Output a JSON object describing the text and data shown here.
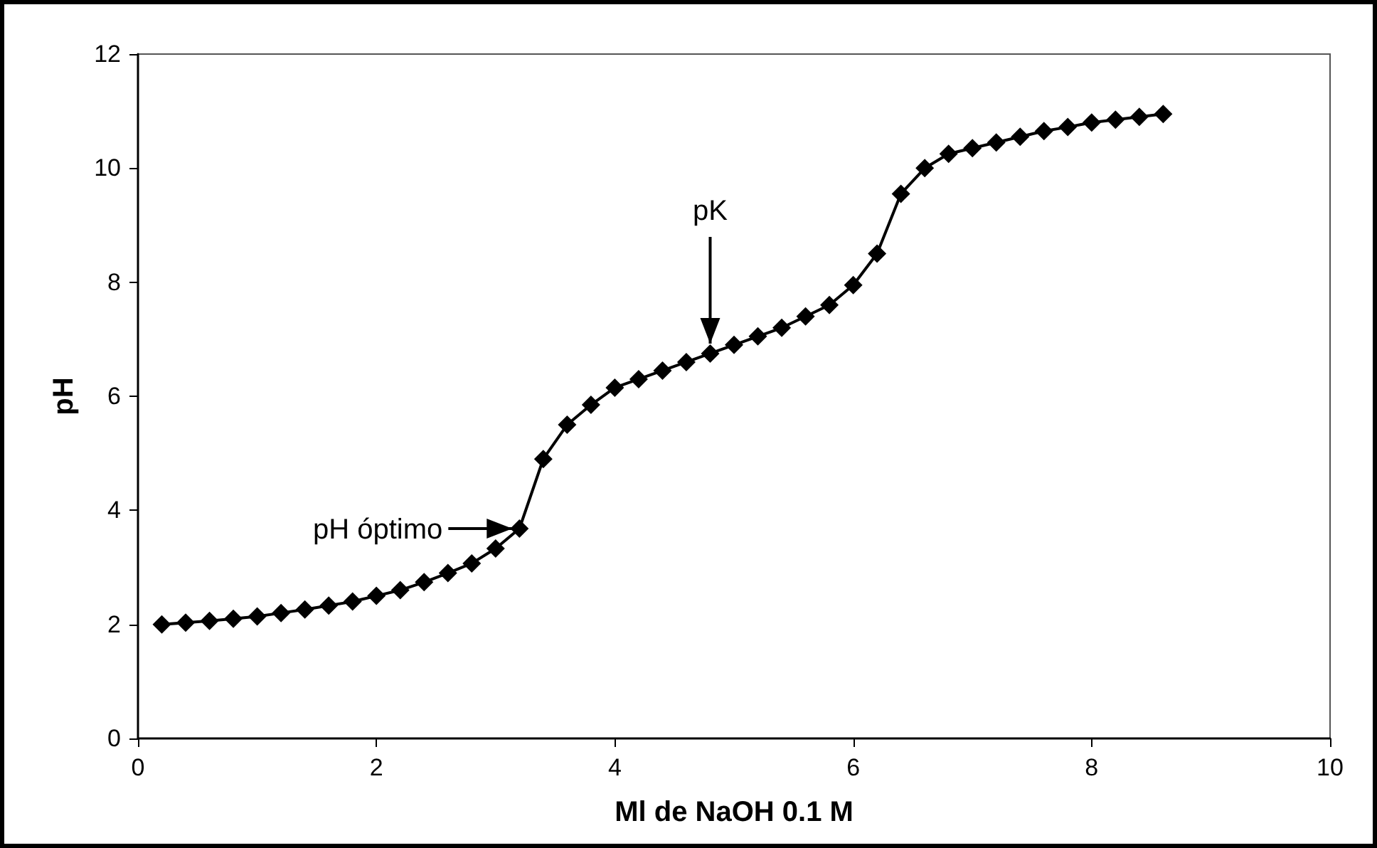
{
  "chart_data": {
    "type": "line",
    "xlabel": "Ml de NaOH 0.1 M",
    "ylabel": "pH",
    "x": [
      0.2,
      0.4,
      0.6,
      0.8,
      1.0,
      1.2,
      1.4,
      1.6,
      1.8,
      2.0,
      2.2,
      2.4,
      2.6,
      2.8,
      3.0,
      3.2,
      3.4,
      3.6,
      3.8,
      4.0,
      4.2,
      4.4,
      4.6,
      4.8,
      5.0,
      5.2,
      5.4,
      5.6,
      5.8,
      6.0,
      6.2,
      6.4,
      6.6,
      6.8,
      7.0,
      7.2,
      7.4,
      7.6,
      7.8,
      8.0,
      8.2,
      8.4,
      8.6
    ],
    "series": [
      {
        "color": "#000000",
        "values": [
          2.0,
          2.03,
          2.06,
          2.1,
          2.14,
          2.2,
          2.26,
          2.33,
          2.4,
          2.5,
          2.6,
          2.74,
          2.9,
          3.07,
          3.33,
          3.68,
          4.9,
          5.5,
          5.85,
          6.15,
          6.3,
          6.45,
          6.6,
          6.75,
          6.9,
          7.05,
          7.2,
          7.4,
          7.6,
          7.95,
          8.5,
          9.55,
          10.0,
          10.25,
          10.35,
          10.45,
          10.55,
          10.65,
          10.72,
          10.8,
          10.85,
          10.9,
          10.95
        ]
      }
    ],
    "xlim": [
      0,
      10
    ],
    "ylim": [
      0,
      12
    ],
    "xticks": [
      0,
      2,
      4,
      6,
      8,
      10
    ],
    "yticks": [
      0,
      2,
      4,
      6,
      8,
      10,
      12
    ],
    "annotations": [
      {
        "text": "pH óptimo",
        "x": 3.2,
        "y": 3.68
      },
      {
        "text": "pK",
        "x": 4.8,
        "y": 6.75
      }
    ],
    "marker": "diamond",
    "line_style": "solid",
    "grid": false
  }
}
